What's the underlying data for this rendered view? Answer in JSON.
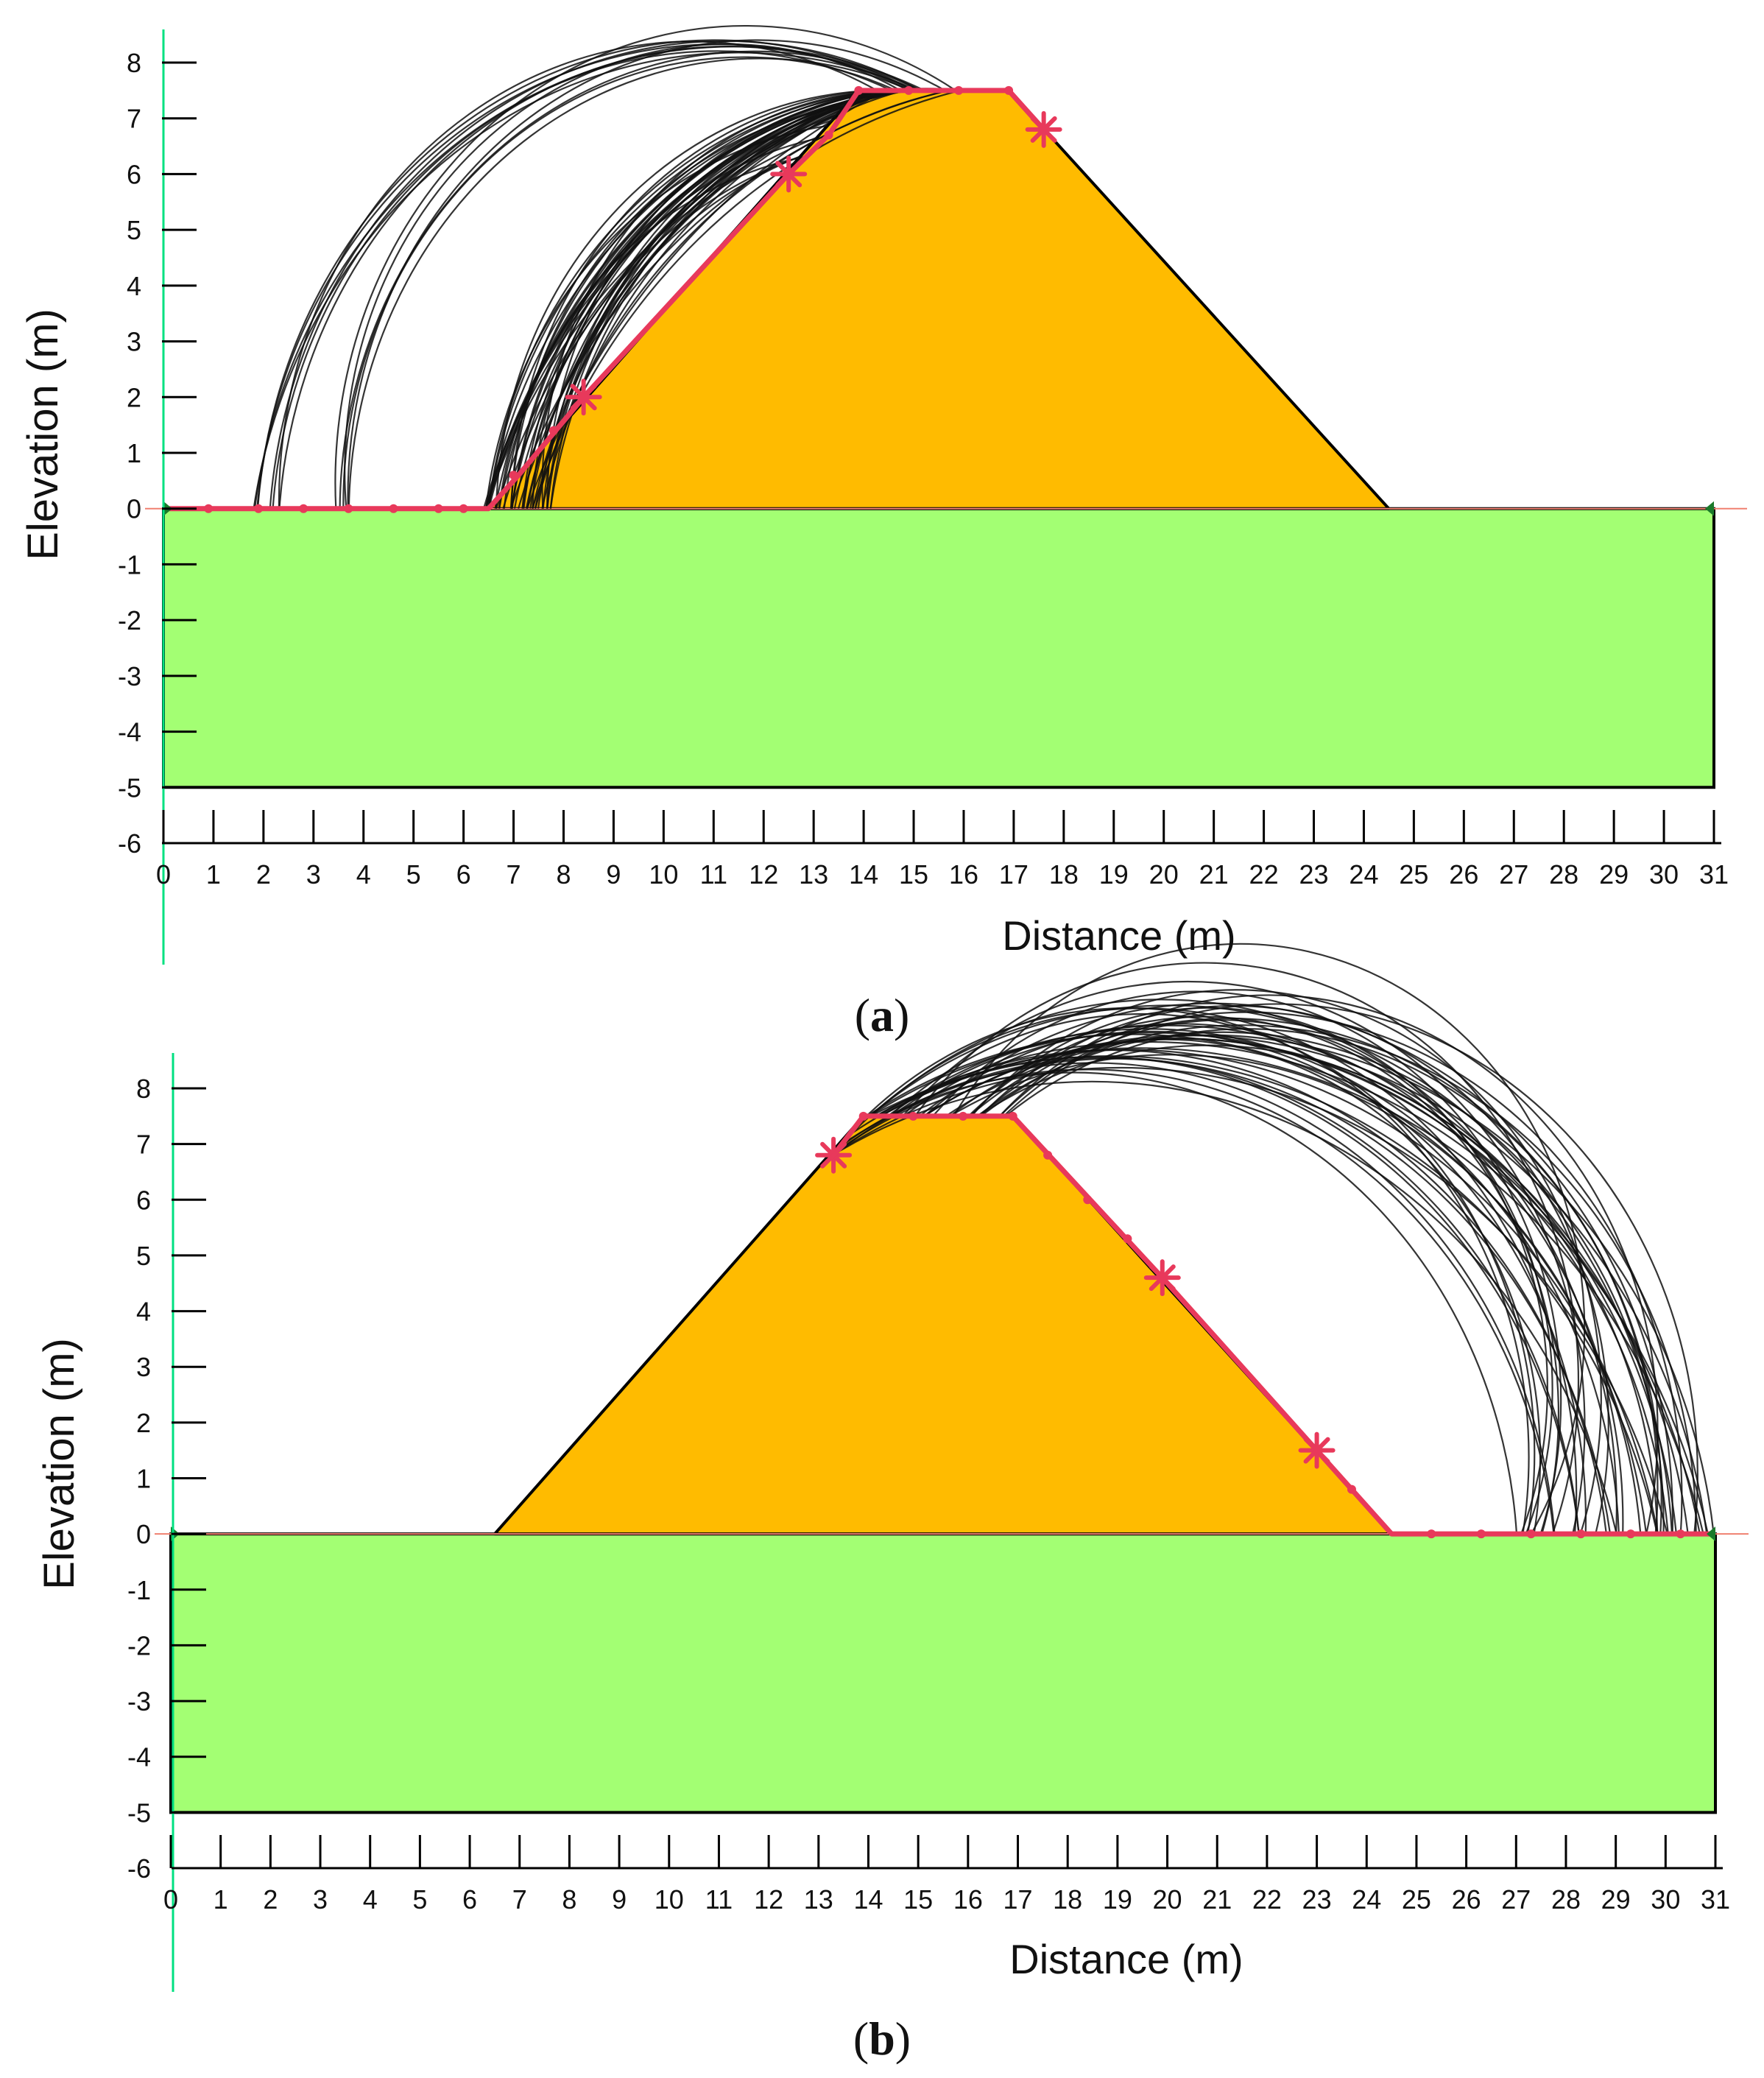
{
  "figure": {
    "panels": [
      {
        "id": "a",
        "caption_letter": "a",
        "ylabel": "Elevation (m)",
        "xlabel": "Distance (m)",
        "x_range": [
          0,
          31
        ],
        "y_range": [
          -6,
          8
        ],
        "x_ticks": [
          "0",
          "1",
          "2",
          "3",
          "4",
          "5",
          "6",
          "7",
          "8",
          "9",
          "10",
          "11",
          "12",
          "13",
          "14",
          "15",
          "16",
          "17",
          "18",
          "19",
          "20",
          "21",
          "22",
          "23",
          "24",
          "25",
          "26",
          "27",
          "28",
          "29",
          "30",
          "31"
        ],
        "y_ticks": [
          "8",
          "7",
          "6",
          "5",
          "4",
          "3",
          "2",
          "1",
          "0",
          "-1",
          "-2",
          "-3",
          "-4",
          "-5",
          "-6"
        ],
        "failure_side": "upstream"
      },
      {
        "id": "b",
        "caption_letter": "b",
        "ylabel": "Elevation (m)",
        "xlabel": "Distance (m)",
        "x_range": [
          0,
          31
        ],
        "y_range": [
          -6,
          8
        ],
        "x_ticks": [
          "0",
          "1",
          "2",
          "3",
          "4",
          "5",
          "6",
          "7",
          "8",
          "9",
          "10",
          "11",
          "12",
          "13",
          "14",
          "15",
          "16",
          "17",
          "18",
          "19",
          "20",
          "21",
          "22",
          "23",
          "24",
          "25",
          "26",
          "27",
          "28",
          "29",
          "30",
          "31"
        ],
        "y_ticks": [
          "8",
          "7",
          "6",
          "5",
          "4",
          "3",
          "2",
          "1",
          "0",
          "-1",
          "-2",
          "-3",
          "-4",
          "-5",
          "-6"
        ],
        "failure_side": "downstream"
      }
    ],
    "geometry": {
      "embankment": [
        [
          6.5,
          0
        ],
        [
          13.9,
          7.5
        ],
        [
          16.9,
          7.5
        ],
        [
          24.5,
          0
        ]
      ],
      "foundation": [
        [
          0,
          0
        ],
        [
          31,
          0
        ],
        [
          31,
          -5
        ],
        [
          0,
          -5
        ]
      ]
    },
    "colors": {
      "embankment": "#FFBB00",
      "foundation": "#A3FF73",
      "slip_zone": "#E8395B",
      "axis_line": "#00E080",
      "ground_line": "#F08070",
      "slip_surface": "#111111"
    }
  }
}
